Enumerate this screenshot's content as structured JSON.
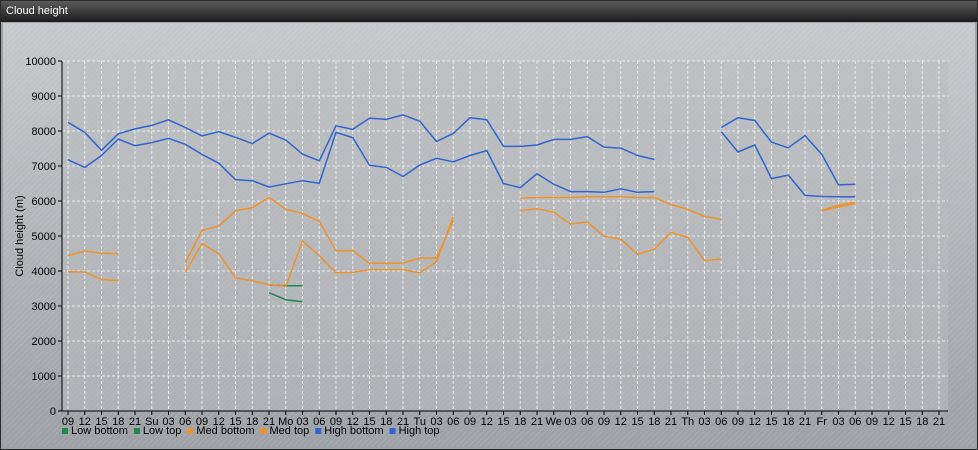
{
  "window": {
    "title": "Cloud height"
  },
  "chart_data": {
    "type": "line",
    "title": "Cloud height",
    "ylabel": "Cloud height (m)",
    "xlabel": "",
    "ylim": [
      0,
      10000
    ],
    "yticks": [
      0,
      1000,
      2000,
      3000,
      4000,
      5000,
      6000,
      7000,
      8000,
      9000,
      10000
    ],
    "x_tick_labels": [
      "09",
      "12",
      "15",
      "18",
      "21",
      "Su",
      "03",
      "06",
      "09",
      "12",
      "15",
      "18",
      "21",
      "Mo",
      "03",
      "06",
      "09",
      "12",
      "15",
      "18",
      "21",
      "Tu",
      "03",
      "06",
      "09",
      "12",
      "15",
      "18",
      "21",
      "We",
      "03",
      "06",
      "09",
      "12",
      "15",
      "18",
      "21",
      "Th",
      "03",
      "06",
      "09",
      "12",
      "15",
      "18",
      "21",
      "Fr",
      "03",
      "06",
      "09",
      "12",
      "15",
      "18",
      "21"
    ],
    "grid": true,
    "legend_position": "bottom-left",
    "series": [
      {
        "name": "Low bottom",
        "color": "#1f8a4c",
        "values": [
          null,
          null,
          null,
          null,
          null,
          null,
          null,
          null,
          null,
          null,
          null,
          null,
          3380,
          3180,
          3120,
          null,
          null,
          null,
          null,
          null,
          null,
          null,
          null,
          null,
          null,
          null,
          null,
          null,
          null,
          null,
          null,
          null,
          null,
          null,
          null,
          null,
          null,
          null,
          null,
          null,
          null,
          null,
          null,
          null,
          null,
          null,
          null,
          null,
          null,
          null,
          null,
          null,
          null
        ]
      },
      {
        "name": "Low top",
        "color": "#1f8a4c",
        "values": [
          null,
          null,
          null,
          null,
          null,
          null,
          null,
          null,
          null,
          null,
          null,
          null,
          3600,
          3580,
          3580,
          null,
          null,
          null,
          null,
          null,
          null,
          null,
          null,
          null,
          null,
          null,
          null,
          null,
          null,
          null,
          null,
          null,
          null,
          null,
          null,
          null,
          null,
          null,
          null,
          null,
          null,
          null,
          null,
          null,
          null,
          null,
          null,
          null,
          null,
          null,
          null,
          null,
          null
        ]
      },
      {
        "name": "Med bottom",
        "color": "#f0922a",
        "values": [
          3980,
          3970,
          3760,
          3720,
          null,
          null,
          null,
          3960,
          4780,
          4500,
          3800,
          3720,
          3610,
          3560,
          4860,
          4440,
          3950,
          3960,
          4040,
          4040,
          4040,
          3950,
          4260,
          5550,
          null,
          null,
          null,
          5720,
          5780,
          5680,
          5340,
          5400,
          4990,
          4910,
          4480,
          4620,
          5100,
          4960,
          4300,
          4340,
          null,
          null,
          null,
          null,
          null,
          5720,
          5830,
          5930,
          null,
          null,
          null,
          null,
          null
        ]
      },
      {
        "name": "Med top",
        "color": "#f0922a",
        "values": [
          4440,
          4570,
          4510,
          4490,
          null,
          null,
          null,
          4240,
          5160,
          5280,
          5720,
          5810,
          6100,
          5770,
          5640,
          5420,
          4580,
          4580,
          4220,
          4220,
          4230,
          4370,
          4370,
          5440,
          null,
          null,
          null,
          6080,
          6100,
          6100,
          6100,
          6120,
          6120,
          6120,
          6100,
          6100,
          5900,
          5760,
          5560,
          5480,
          null,
          null,
          null,
          null,
          null,
          5730,
          5880,
          5960,
          null,
          null,
          null,
          null,
          null
        ]
      },
      {
        "name": "High bottom",
        "color": "#2f65cf",
        "values": [
          7180,
          6960,
          7300,
          7770,
          7580,
          7670,
          7790,
          7620,
          7330,
          7080,
          6610,
          6580,
          6400,
          6490,
          6580,
          6510,
          7960,
          7810,
          7020,
          6960,
          6700,
          7030,
          7220,
          7120,
          7300,
          7440,
          6500,
          6380,
          6780,
          6480,
          6270,
          6270,
          6250,
          6350,
          6250,
          6270,
          null,
          null,
          null,
          7980,
          7400,
          7600,
          6640,
          6740,
          6160,
          6130,
          6120,
          6120,
          null,
          null,
          null,
          null,
          null
        ]
      },
      {
        "name": "High top",
        "color": "#2f65cf",
        "values": [
          8250,
          7960,
          7450,
          7920,
          8060,
          8160,
          8320,
          8100,
          7860,
          7980,
          7820,
          7640,
          7940,
          7740,
          7340,
          7150,
          8150,
          8050,
          8370,
          8330,
          8460,
          8280,
          7700,
          7930,
          8380,
          8320,
          7560,
          7560,
          7600,
          7760,
          7760,
          7840,
          7540,
          7510,
          7300,
          7190,
          null,
          null,
          null,
          8100,
          8380,
          8300,
          7680,
          7520,
          7870,
          7330,
          6460,
          6480,
          null,
          null,
          null,
          null,
          null
        ]
      }
    ]
  }
}
